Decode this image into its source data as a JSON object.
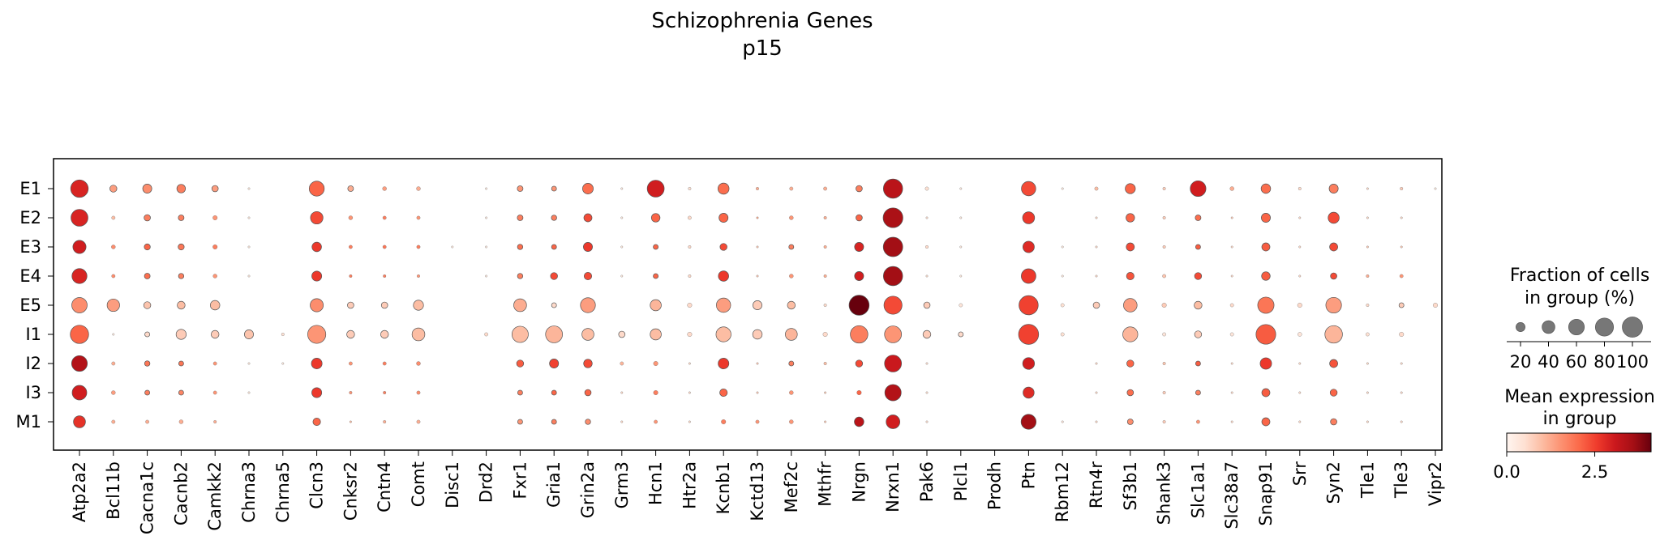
{
  "chart_data": {
    "type": "dotplot",
    "title": "Schizophrenia Genes",
    "subtitle": "p15",
    "genes": [
      "Atp2a2",
      "Bcl11b",
      "Cacna1c",
      "Cacnb2",
      "Camkk2",
      "Chrna3",
      "Chrna5",
      "Clcn3",
      "Cnksr2",
      "Cntn4",
      "Comt",
      "Disc1",
      "Drd2",
      "Fxr1",
      "Gria1",
      "Grin2a",
      "Grm3",
      "Hcn1",
      "Htr2a",
      "Kcnb1",
      "Kctd13",
      "Mef2c",
      "Mthfr",
      "Nrgn",
      "Nrxn1",
      "Pak6",
      "Plcl1",
      "Prodh",
      "Ptn",
      "Rbm12",
      "Rtn4r",
      "Sf3b1",
      "Shank3",
      "Slc1a1",
      "Slc38a7",
      "Snap91",
      "Srr",
      "Syn2",
      "Tle1",
      "Tle3",
      "Vipr2"
    ],
    "groups": [
      "E1",
      "E2",
      "E3",
      "E4",
      "E5",
      "I1",
      "I2",
      "I3",
      "M1"
    ],
    "fraction": [
      [
        75,
        12,
        20,
        18,
        10,
        1,
        0,
        55,
        8,
        4,
        4,
        0,
        1,
        8,
        6,
        28,
        1,
        70,
        2,
        30,
        2,
        3,
        3,
        10,
        90,
        3,
        1,
        0,
        50,
        1,
        3,
        25,
        2,
        60,
        4,
        22,
        2,
        20,
        1,
        2,
        1
      ],
      [
        70,
        3,
        10,
        8,
        5,
        1,
        0,
        38,
        4,
        3,
        3,
        0,
        1,
        8,
        7,
        16,
        1,
        18,
        3,
        20,
        1,
        4,
        2,
        10,
        95,
        1,
        1,
        0,
        35,
        0,
        1,
        18,
        2,
        8,
        1,
        20,
        1,
        30,
        1,
        1,
        0
      ],
      [
        42,
        4,
        9,
        9,
        5,
        1,
        0,
        22,
        3,
        3,
        3,
        1,
        1,
        7,
        6,
        20,
        1,
        6,
        2,
        12,
        1,
        6,
        2,
        20,
        92,
        2,
        1,
        0,
        32,
        1,
        1,
        16,
        2,
        6,
        1,
        16,
        1,
        16,
        1,
        1,
        0
      ],
      [
        55,
        3,
        8,
        7,
        4,
        1,
        0,
        24,
        2,
        2,
        2,
        0,
        1,
        7,
        12,
        14,
        1,
        6,
        2,
        26,
        1,
        4,
        2,
        20,
        90,
        1,
        1,
        0,
        52,
        1,
        1,
        14,
        3,
        12,
        1,
        18,
        1,
        10,
        2,
        3,
        0
      ],
      [
        58,
        38,
        12,
        15,
        22,
        0,
        0,
        42,
        10,
        10,
        25,
        0,
        0,
        40,
        6,
        55,
        0,
        30,
        5,
        50,
        20,
        15,
        2,
        98,
        80,
        10,
        3,
        0,
        90,
        3,
        10,
        45,
        5,
        15,
        3,
        65,
        5,
        60,
        2,
        6,
        5
      ],
      [
        82,
        1,
        6,
        25,
        15,
        20,
        2,
        80,
        15,
        15,
        40,
        0,
        3,
        65,
        70,
        35,
        10,
        30,
        5,
        55,
        22,
        35,
        5,
        75,
        70,
        15,
        6,
        0,
        98,
        3,
        0,
        55,
        3,
        12,
        3,
        95,
        4,
        75,
        3,
        5,
        0
      ],
      [
        60,
        3,
        7,
        6,
        3,
        1,
        1,
        28,
        3,
        3,
        4,
        0,
        0,
        12,
        20,
        18,
        3,
        5,
        1,
        28,
        1,
        6,
        2,
        12,
        70,
        1,
        0,
        0,
        34,
        0,
        1,
        12,
        2,
        6,
        1,
        32,
        1,
        16,
        1,
        1,
        0
      ],
      [
        52,
        4,
        6,
        6,
        3,
        1,
        0,
        24,
        2,
        2,
        3,
        0,
        0,
        6,
        6,
        10,
        1,
        5,
        1,
        14,
        1,
        4,
        1,
        5,
        65,
        1,
        0,
        0,
        30,
        0,
        1,
        10,
        2,
        6,
        1,
        16,
        1,
        12,
        1,
        1,
        0
      ],
      [
        35,
        3,
        3,
        4,
        2,
        0,
        0,
        14,
        1,
        2,
        3,
        0,
        0,
        6,
        6,
        7,
        1,
        3,
        1,
        5,
        3,
        4,
        1,
        22,
        46,
        1,
        0,
        0,
        55,
        1,
        1,
        8,
        2,
        3,
        1,
        16,
        1,
        10,
        1,
        1,
        0
      ]
    ],
    "expression": [
      [
        2.9,
        1.4,
        1.6,
        1.8,
        1.4,
        0.3,
        0,
        2.1,
        1.2,
        1.4,
        1.2,
        0,
        0.3,
        1.5,
        1.5,
        2.0,
        0.3,
        3.0,
        0.5,
        2.0,
        1.2,
        1.2,
        1.2,
        1.8,
        3.3,
        0.5,
        0.3,
        0,
        2.4,
        0.3,
        1.0,
        2.1,
        0.8,
        3.0,
        1.2,
        2.0,
        0.6,
        1.8,
        0.6,
        0.8,
        0.3
      ],
      [
        2.9,
        1.0,
        1.8,
        1.8,
        1.5,
        0.3,
        0,
        2.4,
        1.5,
        1.8,
        1.5,
        0,
        0.3,
        1.8,
        1.8,
        2.4,
        0.3,
        2.1,
        0.6,
        2.1,
        1.2,
        1.5,
        1.2,
        2.1,
        3.5,
        0.5,
        0.3,
        0,
        2.6,
        0.3,
        0.6,
        2.1,
        0.8,
        2.0,
        0.8,
        2.1,
        0.6,
        2.4,
        0.6,
        0.6,
        0.3
      ],
      [
        3.0,
        1.6,
        2.1,
        1.9,
        1.8,
        0.3,
        0,
        2.6,
        1.8,
        1.9,
        1.8,
        0.3,
        0.3,
        2.0,
        2.1,
        2.6,
        0.3,
        2.1,
        0.6,
        2.4,
        0.8,
        1.8,
        1.2,
        2.9,
        3.6,
        0.6,
        0.3,
        0,
        2.8,
        0.3,
        0.6,
        2.4,
        0.8,
        2.2,
        0.6,
        2.2,
        0.6,
        2.4,
        0.8,
        0.8,
        0.3
      ],
      [
        2.9,
        1.6,
        2.0,
        1.8,
        1.5,
        0.3,
        0,
        2.6,
        1.8,
        1.8,
        1.5,
        0,
        0.3,
        1.8,
        2.4,
        2.4,
        0.3,
        2.1,
        0.6,
        2.6,
        0.8,
        1.5,
        1.2,
        3.0,
        3.6,
        0.5,
        0.3,
        0,
        2.6,
        0.3,
        0.6,
        2.3,
        0.9,
        2.4,
        0.6,
        2.2,
        0.6,
        2.4,
        1.2,
        1.5,
        0.3
      ],
      [
        1.6,
        1.4,
        0.9,
        1.0,
        1.0,
        0,
        0,
        1.6,
        0.8,
        0.8,
        1.0,
        0,
        0,
        1.2,
        0.6,
        1.4,
        0,
        1.1,
        0.6,
        1.4,
        0.8,
        1.0,
        0.6,
        4.1,
        2.4,
        0.8,
        0.4,
        0,
        2.5,
        0.5,
        0.8,
        1.4,
        0.8,
        1.0,
        0.6,
        1.9,
        0.6,
        1.4,
        0.6,
        0.8,
        0.6
      ],
      [
        2.1,
        0.3,
        0.6,
        0.8,
        0.8,
        0.9,
        0.5,
        1.5,
        0.8,
        0.8,
        1.0,
        0,
        0.6,
        1.0,
        1.1,
        1.0,
        0.6,
        1.0,
        0.6,
        1.0,
        0.8,
        1.1,
        0.6,
        1.8,
        1.5,
        0.8,
        0.6,
        0,
        2.5,
        0.5,
        0,
        1.1,
        0.4,
        0.8,
        0.4,
        2.2,
        0.4,
        1.1,
        0.5,
        0.6,
        0
      ],
      [
        3.4,
        1.2,
        1.9,
        1.9,
        1.5,
        0.3,
        0.3,
        2.6,
        1.5,
        1.8,
        1.6,
        0,
        0,
        2.2,
        2.5,
        2.4,
        1.1,
        1.5,
        0.6,
        2.6,
        0.8,
        1.8,
        1.0,
        2.4,
        3.1,
        0.5,
        0,
        0,
        3.0,
        0,
        0.6,
        2.1,
        0.9,
        2.2,
        0.6,
        2.6,
        0.6,
        2.3,
        0.6,
        0.6,
        0
      ],
      [
        3.0,
        1.4,
        1.8,
        1.7,
        1.5,
        0.3,
        0,
        2.6,
        1.5,
        1.8,
        1.6,
        0,
        0,
        1.8,
        2.1,
        2.1,
        0.6,
        1.8,
        0.6,
        2.1,
        0.8,
        1.5,
        0.8,
        2.1,
        3.4,
        0.5,
        0,
        0,
        2.8,
        0,
        0.6,
        2.0,
        0.8,
        1.8,
        0.6,
        2.2,
        0.6,
        2.1,
        0.6,
        0.6,
        0
      ],
      [
        2.7,
        1.2,
        1.2,
        1.2,
        1.2,
        0,
        0,
        2.1,
        1.0,
        1.2,
        1.2,
        0,
        0,
        1.5,
        1.8,
        1.6,
        0.6,
        1.5,
        0.6,
        1.8,
        1.5,
        1.5,
        0.8,
        3.3,
        3.0,
        0.5,
        0,
        0,
        3.6,
        0.4,
        0.6,
        1.6,
        0.8,
        1.5,
        0.6,
        2.1,
        0.6,
        1.8,
        0.6,
        0.6,
        0
      ]
    ],
    "size_legend": {
      "title_line1": "Fraction of cells",
      "title_line2": "in group (%)",
      "values": [
        20,
        40,
        60,
        80,
        100
      ],
      "labels": [
        "20",
        "40",
        "60",
        "80",
        "100"
      ]
    },
    "color_legend": {
      "title_line1": "Mean expression",
      "title_line2": "in group",
      "range": [
        0,
        4.1
      ],
      "tick_values": [
        0,
        2.5
      ],
      "tick_labels": [
        "0.0",
        "2.5"
      ],
      "colormap": "Reds"
    },
    "grid": false
  }
}
